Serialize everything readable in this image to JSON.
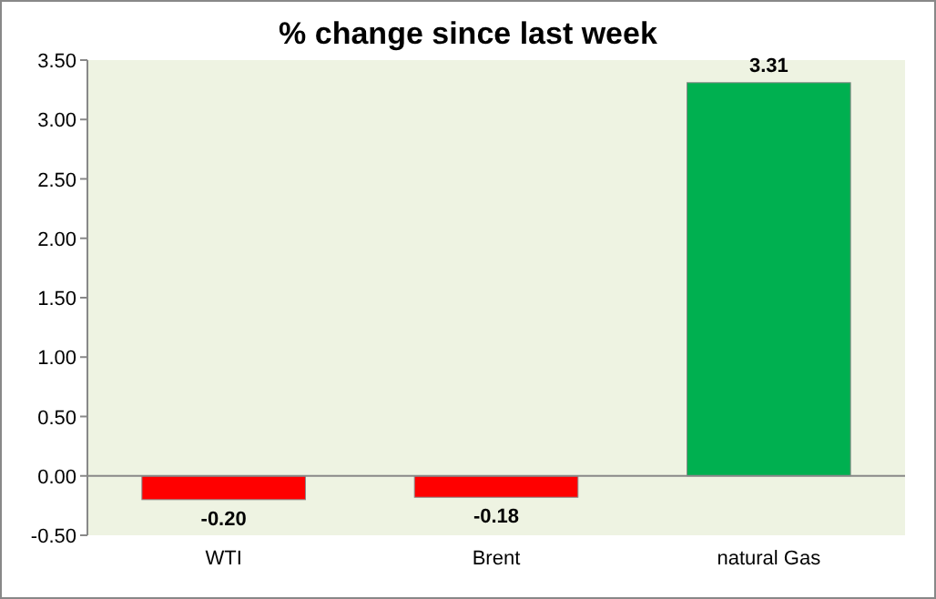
{
  "chart_data": {
    "type": "bar",
    "title": "% change since last week",
    "categories": [
      "WTI",
      "Brent",
      "natural Gas"
    ],
    "values": [
      -0.2,
      -0.18,
      3.31
    ],
    "colors": [
      "#ff0000",
      "#ff0000",
      "#00b050"
    ],
    "value_labels": [
      "-0.20",
      "-0.18",
      "3.31"
    ],
    "ylim": [
      -0.5,
      3.5
    ],
    "yticks": [
      {
        "value": -0.5,
        "label": "-0.50"
      },
      {
        "value": 0,
        "label": "0.00"
      },
      {
        "value": 0.5,
        "label": "0.50"
      },
      {
        "value": 1,
        "label": "1.00"
      },
      {
        "value": 1.5,
        "label": "1.50"
      },
      {
        "value": 2,
        "label": "2.00"
      },
      {
        "value": 2.5,
        "label": "2.50"
      },
      {
        "value": 3,
        "label": "3.00"
      },
      {
        "value": 3.5,
        "label": "3.50"
      }
    ],
    "tick_labels": true
  }
}
